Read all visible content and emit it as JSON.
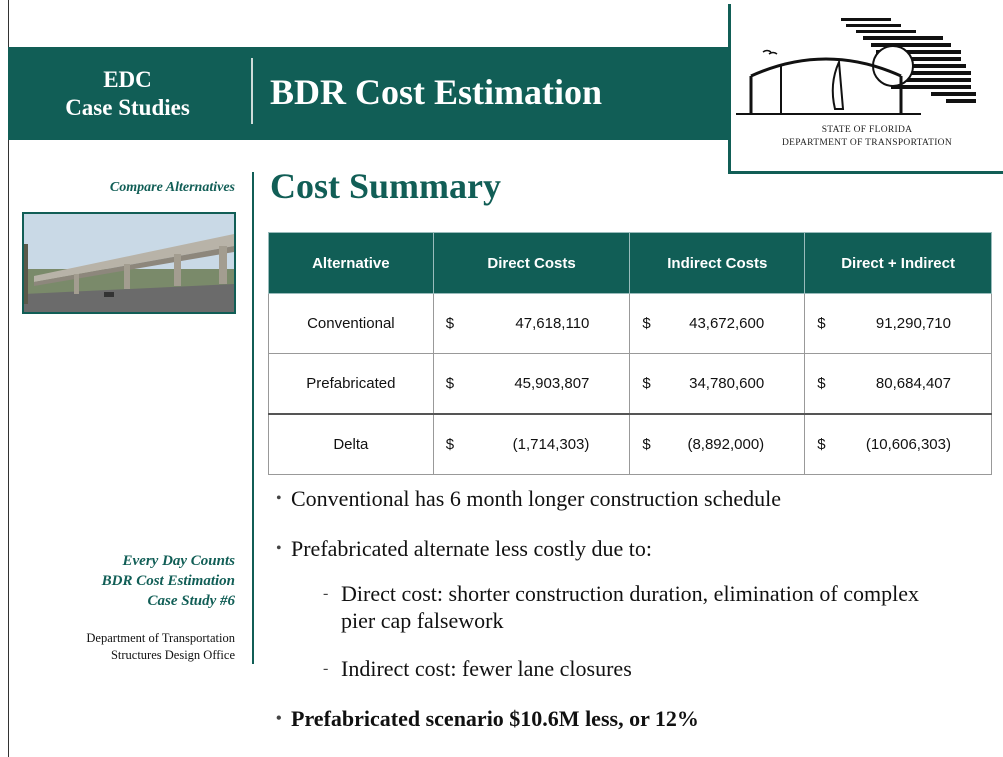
{
  "header": {
    "section": [
      "EDC",
      "Case Studies"
    ],
    "title": "BDR Cost Estimation"
  },
  "logo": {
    "lines": [
      "STATE OF FLORIDA",
      "DEPARTMENT OF TRANSPORTATION"
    ]
  },
  "sidebar": {
    "caption": "Compare Alternatives",
    "series": [
      "Every Day Counts",
      "BDR Cost Estimation",
      "Case Study #6"
    ],
    "office": [
      "Department of Transportation",
      "Structures Design Office"
    ]
  },
  "content": {
    "heading": "Cost Summary",
    "table": {
      "headers": [
        "Alternative",
        "Direct Costs",
        "Indirect Costs",
        "Direct + Indirect"
      ],
      "rows": [
        [
          "Conventional",
          "$",
          "47,618,110",
          "$",
          "43,672,600",
          "$",
          "91,290,710"
        ],
        [
          "Prefabricated",
          "$",
          "45,903,807",
          "$",
          "34,780,600",
          "$",
          "80,684,407"
        ],
        [
          "Delta",
          "$",
          "(1,714,303)",
          "$",
          "(8,892,000)",
          "$",
          "(10,606,303)"
        ]
      ]
    },
    "bullets": [
      "Conventional has 6 month longer construction schedule",
      "Prefabricated alternate less costly due to:"
    ],
    "sub_bullets": [
      "Direct cost: shorter construction duration, elimination of complex pier cap falsework",
      "Indirect cost: fewer lane closures"
    ],
    "conclusion": "Prefabricated scenario $10.6M less, or 12%"
  }
}
